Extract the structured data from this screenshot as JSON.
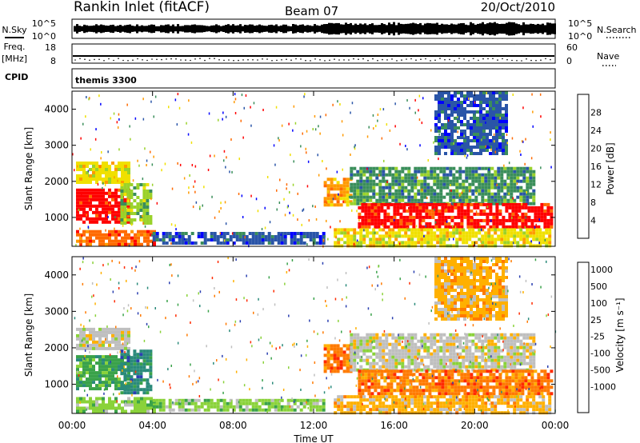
{
  "header": {
    "title": "Rankin Inlet (fitACF)",
    "beam": "Beam 07",
    "date": "20/Oct/2010"
  },
  "top_panels": {
    "nsky_label": "N.Sky",
    "nsearch_label": "N.Search",
    "nsky_ticks": [
      "10^5",
      "10^0"
    ],
    "nsearch_ticks": [
      "10^5",
      "10^0"
    ],
    "freq_label": "Freq.",
    "freq_unit": "[MHz]",
    "freq_ticks": [
      "18",
      "8"
    ],
    "nave_label": "Nave",
    "nave_ticks": [
      "60",
      "0"
    ],
    "cpid_label": "CPID",
    "cpid_value": "themis 3300"
  },
  "chart_data": [
    {
      "type": "heatmap",
      "name": "power-panel",
      "ylabel": "Slant Range [km]",
      "yticks": [
        "1000",
        "2000",
        "3000",
        "4000"
      ],
      "ylim": [
        200,
        4500
      ],
      "xlim": [
        0,
        24
      ],
      "colorbar_label": "Power [dB]",
      "colorbar_ticks": [
        "28",
        "24",
        "20",
        "16",
        "12",
        "8",
        "4"
      ],
      "colors": [
        "#ff0000",
        "#ff6a00",
        "#ff9a00",
        "#f0e000",
        "#9ad22a",
        "#3a8e5a",
        "#2a55a8",
        "#0000ff"
      ],
      "regions": [
        {
          "t0": 0.2,
          "t1": 2.8,
          "r0": 2000,
          "r1": 2550,
          "level": 3
        },
        {
          "t0": 0.2,
          "t1": 2.8,
          "r0": 850,
          "r1": 1800,
          "level": 0
        },
        {
          "t0": 2.4,
          "t1": 3.9,
          "r0": 800,
          "r1": 1950,
          "level": 4
        },
        {
          "t0": 0.2,
          "t1": 4.1,
          "r0": 250,
          "r1": 650,
          "level": 1
        },
        {
          "t0": 4.0,
          "t1": 12.5,
          "r0": 250,
          "r1": 600,
          "level": 6
        },
        {
          "t0": 12.5,
          "t1": 13.8,
          "r0": 1350,
          "r1": 2100,
          "level": 2
        },
        {
          "t0": 13.8,
          "t1": 23.0,
          "r0": 1400,
          "r1": 2400,
          "level": 5
        },
        {
          "t0": 14.2,
          "t1": 23.8,
          "r0": 700,
          "r1": 1400,
          "level": 0
        },
        {
          "t0": 13.0,
          "t1": 23.8,
          "r0": 250,
          "r1": 700,
          "level": 3
        },
        {
          "t0": 18.0,
          "t1": 21.5,
          "r0": 2800,
          "r1": 4500,
          "level": 6
        }
      ]
    },
    {
      "type": "heatmap",
      "name": "velocity-panel",
      "ylabel": "Slant Range [km]",
      "yticks": [
        "1000",
        "2000",
        "3000",
        "4000"
      ],
      "ylim": [
        200,
        4500
      ],
      "xlim": [
        0,
        24
      ],
      "xlabel": "Time UT",
      "xticks": [
        "00:00",
        "04:00",
        "08:00",
        "12:00",
        "16:00",
        "20:00",
        "00:00"
      ],
      "colorbar_label": "Velocity [m s⁻¹]",
      "colorbar_ticks": [
        "1000",
        "500",
        "100",
        "25",
        "-25",
        "-100",
        "-500",
        "-1000"
      ],
      "colors": [
        "#2a3fb0",
        "#2a8a7a",
        "#3aa24a",
        "#8ad23a",
        "#bfbfbf",
        "#ffb000",
        "#ff7a00",
        "#ff2a00"
      ],
      "regions": [
        {
          "t0": 0.2,
          "t1": 2.8,
          "r0": 2000,
          "r1": 2550,
          "level": 4
        },
        {
          "t0": 0.2,
          "t1": 2.8,
          "r0": 850,
          "r1": 1800,
          "level": 2
        },
        {
          "t0": 2.4,
          "t1": 3.9,
          "r0": 800,
          "r1": 1950,
          "level": 1
        },
        {
          "t0": 0.2,
          "t1": 4.1,
          "r0": 250,
          "r1": 650,
          "level": 3
        },
        {
          "t0": 4.0,
          "t1": 12.5,
          "r0": 250,
          "r1": 600,
          "level": 3
        },
        {
          "t0": 12.5,
          "t1": 13.8,
          "r0": 1350,
          "r1": 2100,
          "level": 6
        },
        {
          "t0": 13.8,
          "t1": 23.0,
          "r0": 1400,
          "r1": 2400,
          "level": 4
        },
        {
          "t0": 14.2,
          "t1": 23.8,
          "r0": 700,
          "r1": 1400,
          "level": 6
        },
        {
          "t0": 13.0,
          "t1": 23.8,
          "r0": 250,
          "r1": 700,
          "level": 5
        },
        {
          "t0": 18.0,
          "t1": 21.5,
          "r0": 2800,
          "r1": 4500,
          "level": 5
        }
      ]
    }
  ]
}
